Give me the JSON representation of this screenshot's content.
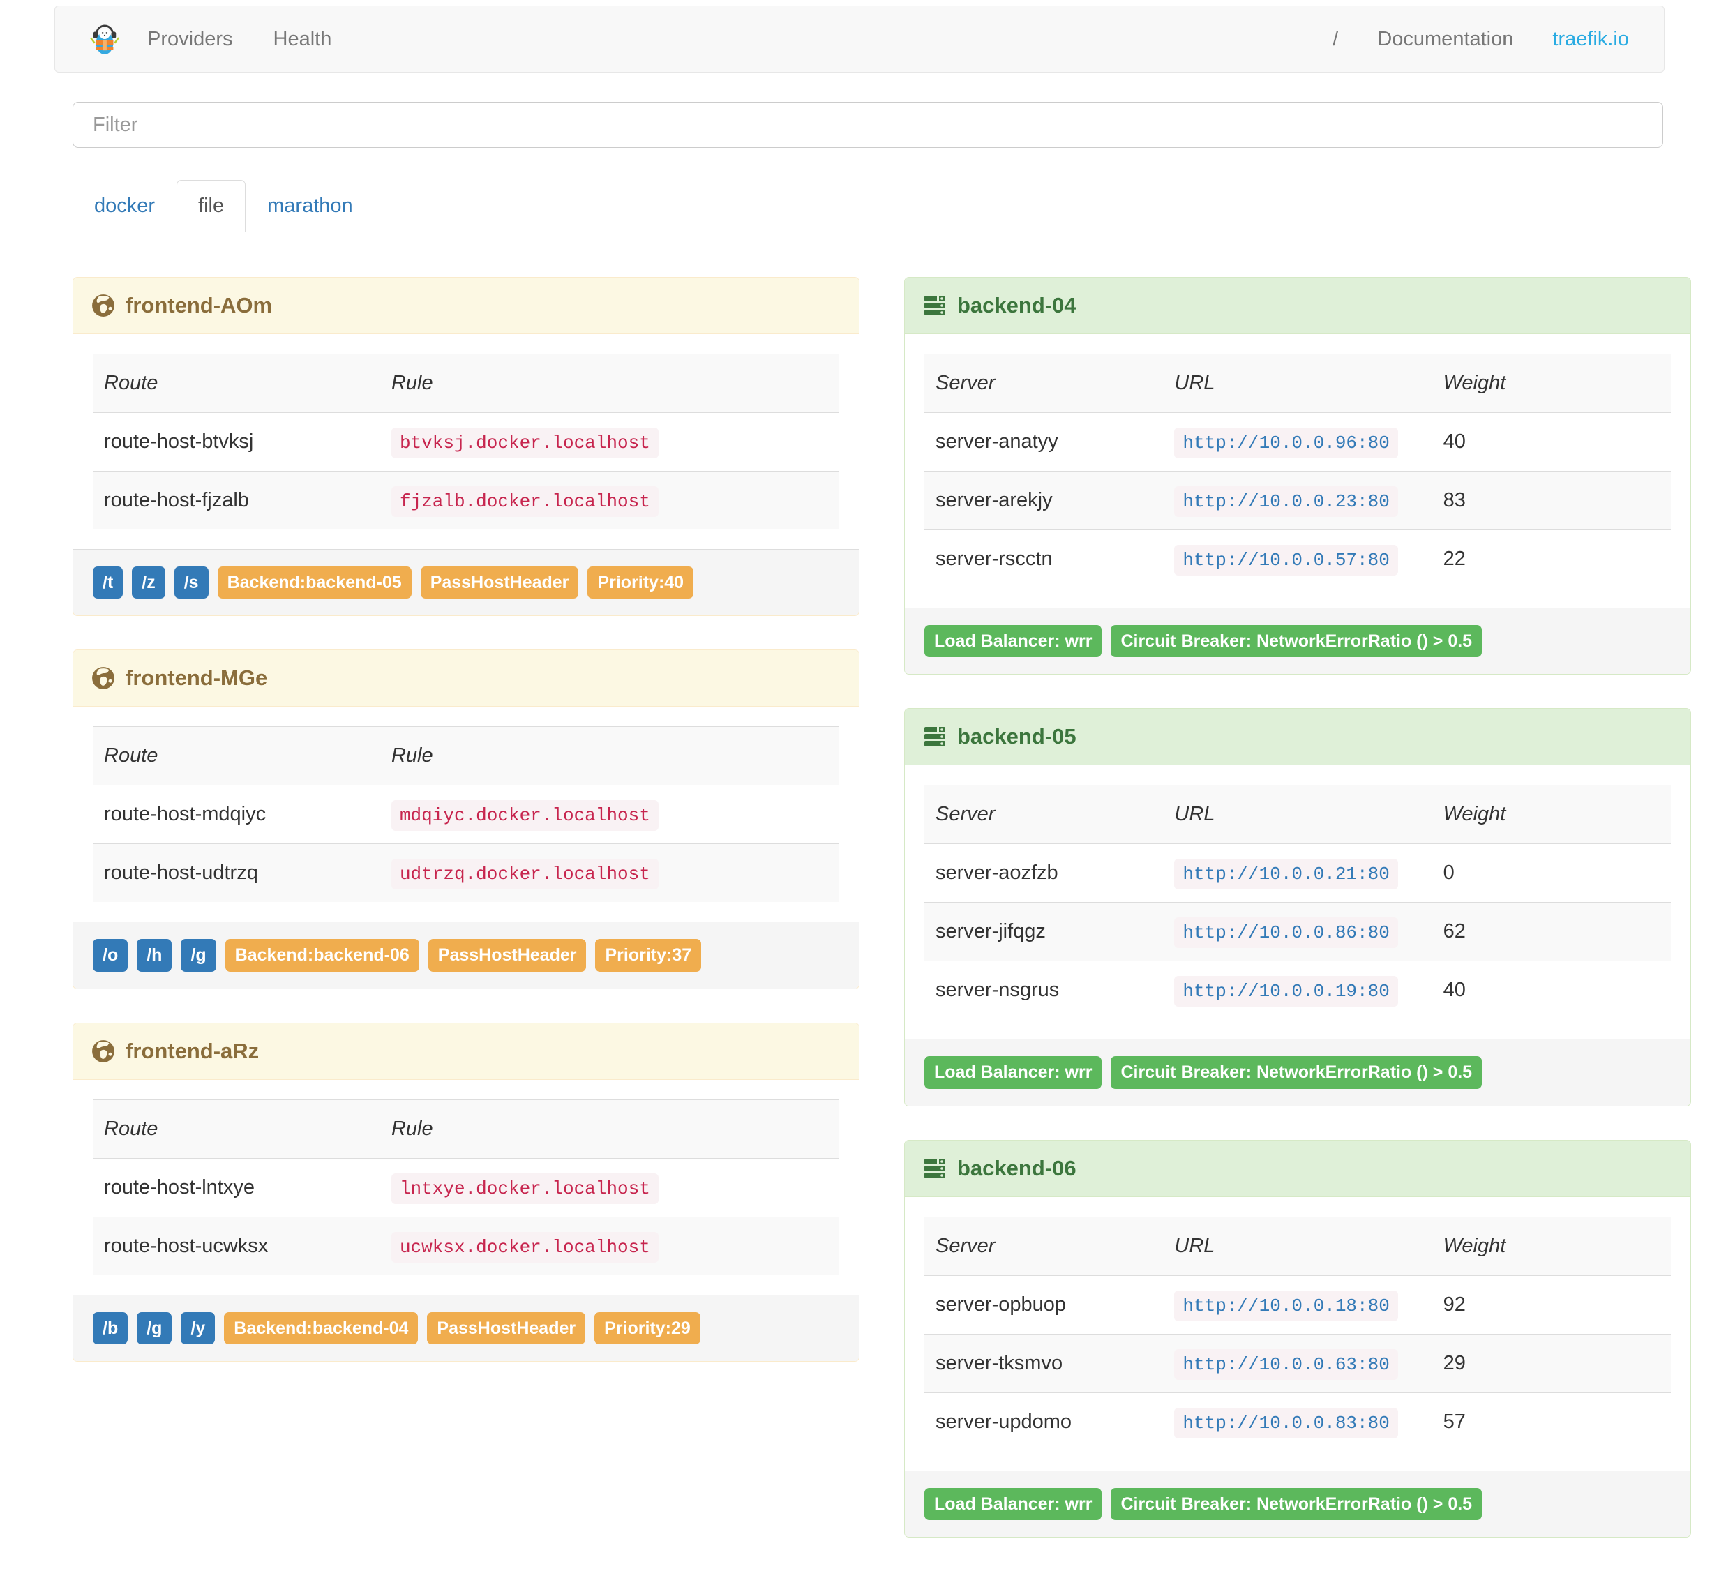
{
  "navbar": {
    "links": [
      {
        "label": "Providers"
      },
      {
        "label": "Health"
      }
    ],
    "right": [
      {
        "label": "/"
      },
      {
        "label": "Documentation"
      },
      {
        "label": "traefik.io"
      }
    ]
  },
  "filter": {
    "placeholder": "Filter"
  },
  "tabs": [
    {
      "label": "docker",
      "active": false
    },
    {
      "label": "file",
      "active": true
    },
    {
      "label": "marathon",
      "active": false
    }
  ],
  "frontend_columns": [
    "Route",
    "Rule"
  ],
  "backend_columns": [
    "Server",
    "URL",
    "Weight"
  ],
  "frontends": [
    {
      "title": "frontend-AOm",
      "routes": [
        {
          "route": "route-host-btvksj",
          "rule": "btvksj.docker.localhost"
        },
        {
          "route": "route-host-fjzalb",
          "rule": "fjzalb.docker.localhost"
        }
      ],
      "entry_points": [
        "/t",
        "/z",
        "/s"
      ],
      "tags": [
        "Backend:backend-05",
        "PassHostHeader",
        "Priority:40"
      ]
    },
    {
      "title": "frontend-MGe",
      "routes": [
        {
          "route": "route-host-mdqiyc",
          "rule": "mdqiyc.docker.localhost"
        },
        {
          "route": "route-host-udtrzq",
          "rule": "udtrzq.docker.localhost"
        }
      ],
      "entry_points": [
        "/o",
        "/h",
        "/g"
      ],
      "tags": [
        "Backend:backend-06",
        "PassHostHeader",
        "Priority:37"
      ]
    },
    {
      "title": "frontend-aRz",
      "routes": [
        {
          "route": "route-host-lntxye",
          "rule": "lntxye.docker.localhost"
        },
        {
          "route": "route-host-ucwksx",
          "rule": "ucwksx.docker.localhost"
        }
      ],
      "entry_points": [
        "/b",
        "/g",
        "/y"
      ],
      "tags": [
        "Backend:backend-04",
        "PassHostHeader",
        "Priority:29"
      ]
    }
  ],
  "backends": [
    {
      "title": "backend-04",
      "servers": [
        {
          "server": "server-anatyy",
          "url": "http://10.0.0.96:80",
          "weight": "40"
        },
        {
          "server": "server-arekjy",
          "url": "http://10.0.0.23:80",
          "weight": "83"
        },
        {
          "server": "server-rscctn",
          "url": "http://10.0.0.57:80",
          "weight": "22"
        }
      ],
      "tags": [
        "Load Balancer: wrr",
        "Circuit Breaker: NetworkErrorRatio () > 0.5"
      ]
    },
    {
      "title": "backend-05",
      "servers": [
        {
          "server": "server-aozfzb",
          "url": "http://10.0.0.21:80",
          "weight": "0"
        },
        {
          "server": "server-jifqgz",
          "url": "http://10.0.0.86:80",
          "weight": "62"
        },
        {
          "server": "server-nsgrus",
          "url": "http://10.0.0.19:80",
          "weight": "40"
        }
      ],
      "tags": [
        "Load Balancer: wrr",
        "Circuit Breaker: NetworkErrorRatio () > 0.5"
      ]
    },
    {
      "title": "backend-06",
      "servers": [
        {
          "server": "server-opbuop",
          "url": "http://10.0.0.18:80",
          "weight": "92"
        },
        {
          "server": "server-tksmvo",
          "url": "http://10.0.0.63:80",
          "weight": "29"
        },
        {
          "server": "server-updomo",
          "url": "http://10.0.0.83:80",
          "weight": "57"
        }
      ],
      "tags": [
        "Load Balancer: wrr",
        "Circuit Breaker: NetworkErrorRatio () > 0.5"
      ]
    }
  ],
  "colors": {
    "warning_bg": "#fcf8e3",
    "warning_border": "#faebcc",
    "warning_text": "#8a6d3b",
    "success_bg": "#dff0d8",
    "success_border": "#d6e9c6",
    "success_text": "#3c763d",
    "label_blue": "#337ab7",
    "label_orange": "#f0ad4e",
    "label_green": "#5cb85c",
    "code_text": "#c7254e",
    "code_bg": "#f9f2f4",
    "link_blue": "#337ab7",
    "brand_blue": "#29abe2"
  }
}
